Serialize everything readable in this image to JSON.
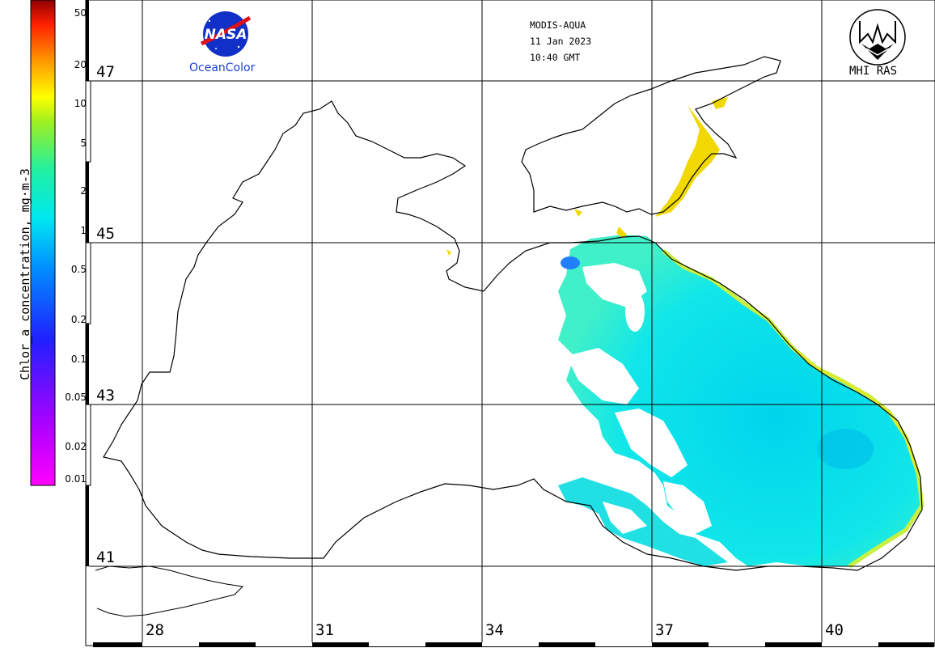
{
  "header": {
    "sensor": "MODIS-AQUA",
    "date": "11 Jan 2023",
    "time": "10:40 GMT"
  },
  "logos": {
    "nasa_label": "NASA",
    "oceancolor_label": "OceanColor",
    "mhi_label": "MHI RAS"
  },
  "colorbar": {
    "title": "Chlor_a concentration, mg·m-3",
    "ticks": [
      "50",
      "20",
      "10",
      "5",
      "2",
      "1",
      "0.5",
      "0.2",
      "0.1",
      "0.05",
      "0.02",
      "0.01"
    ],
    "colors": [
      "#ff00ff",
      "#8000ff",
      "#0000ff",
      "#0080ff",
      "#00ffff",
      "#00ff80",
      "#80ff00",
      "#ffff00",
      "#ff8000",
      "#ff0000",
      "#800000"
    ]
  },
  "grid": {
    "latitudes": [
      "47",
      "45",
      "43",
      "41"
    ],
    "longitudes": [
      "28",
      "31",
      "34",
      "37",
      "40"
    ]
  },
  "legend_colors": {
    "coast": "#000000",
    "low_chl": "#00e8f0",
    "mid_chl": "#20d8e8",
    "high_chl": "#f0e000"
  }
}
